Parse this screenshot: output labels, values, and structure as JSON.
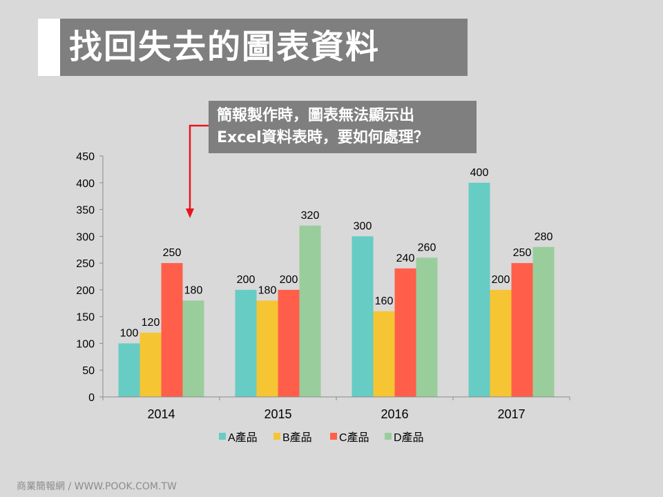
{
  "slide": {
    "title": "找回失去的圖表資料",
    "callout_line1": "簡報製作時，圖表無法顯示出",
    "callout_line2": "Excel資料表時，要如何處理？",
    "footer": "商業簡報網  / WWW.POOK.COM.TW"
  },
  "colors": {
    "background": "#d9d9d9",
    "title_bar": "#7f7f7f",
    "arrow": "#e8141b"
  },
  "chart_data": {
    "type": "bar",
    "categories": [
      "2014",
      "2015",
      "2016",
      "2017"
    ],
    "series": [
      {
        "name": "A產品",
        "values": [
          100,
          200,
          300,
          400
        ],
        "color": "#66ccc4"
      },
      {
        "name": "B產品",
        "values": [
          120,
          180,
          160,
          200
        ],
        "color": "#f5c534"
      },
      {
        "name": "C產品",
        "values": [
          250,
          200,
          240,
          250
        ],
        "color": "#ff5f4a"
      },
      {
        "name": "D產品",
        "values": [
          180,
          320,
          260,
          280
        ],
        "color": "#9acd9c"
      }
    ],
    "ylim": [
      0,
      450
    ],
    "yticks": [
      0,
      50,
      100,
      150,
      200,
      250,
      300,
      350,
      400,
      450
    ],
    "grid": false,
    "legend": "bottom",
    "data_labels": true
  }
}
